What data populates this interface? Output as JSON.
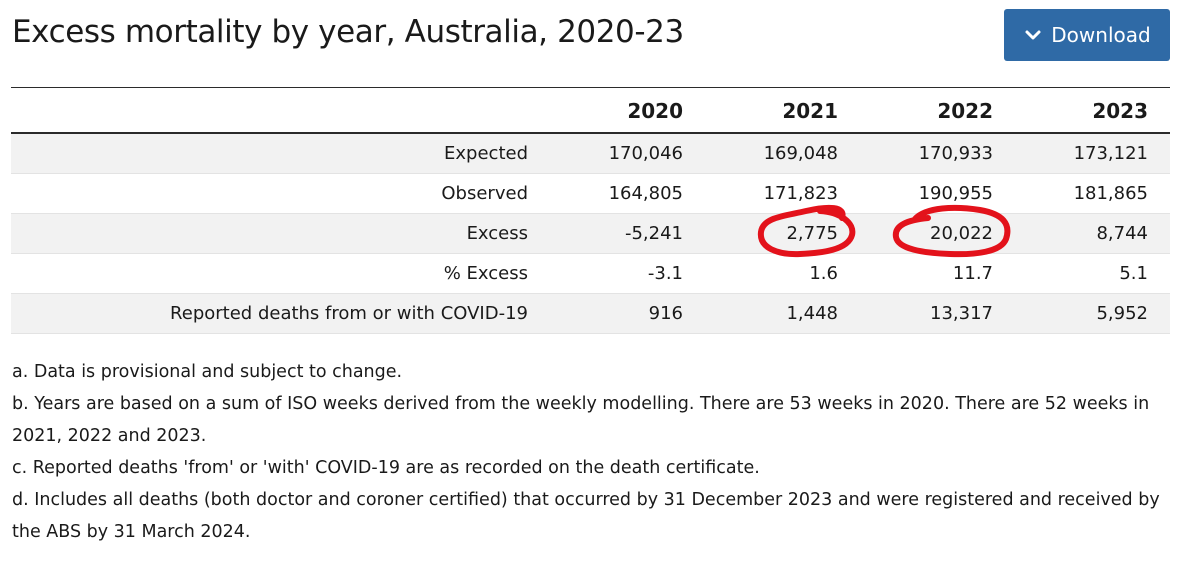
{
  "page": {
    "title": "Excess mortality by year, Australia, 2020-23"
  },
  "download": {
    "label": "Download",
    "icon": "chevron-down-icon"
  },
  "table": {
    "columns": [
      "",
      "2020",
      "2021",
      "2022",
      "2023"
    ],
    "rows": [
      {
        "label": "Expected",
        "values": [
          "170,046",
          "169,048",
          "170,933",
          "173,121"
        ]
      },
      {
        "label": "Observed",
        "values": [
          "164,805",
          "171,823",
          "190,955",
          "181,865"
        ]
      },
      {
        "label": "Excess",
        "values": [
          "-5,241",
          "2,775",
          "20,022",
          "8,744"
        ]
      },
      {
        "label": "% Excess",
        "values": [
          "-3.1",
          "1.6",
          "11.7",
          "5.1"
        ]
      },
      {
        "label": "Reported deaths from or with COVID-19",
        "values": [
          "916",
          "1,448",
          "13,317",
          "5,952"
        ]
      }
    ]
  },
  "footnotes": [
    "a. Data is provisional and subject to change.",
    "b. Years are based on a sum of ISO weeks derived from the weekly modelling. There are 53 weeks in 2020. There are 52 weeks in 2021, 2022 and 2023.",
    "c. Reported deaths 'from' or 'with' COVID-19 are as recorded on the death certificate.",
    "d. Includes all deaths (both doctor and coroner certified) that occurred by 31 December 2023 and were registered and received by the ABS by 31 March 2024."
  ],
  "annotations": {
    "circle_color": "#e3121b",
    "circled_values": [
      "2,775",
      "20,022"
    ]
  },
  "colors": {
    "button_background": "#2f6aa6",
    "row_stripe": "#f2f2f2"
  }
}
